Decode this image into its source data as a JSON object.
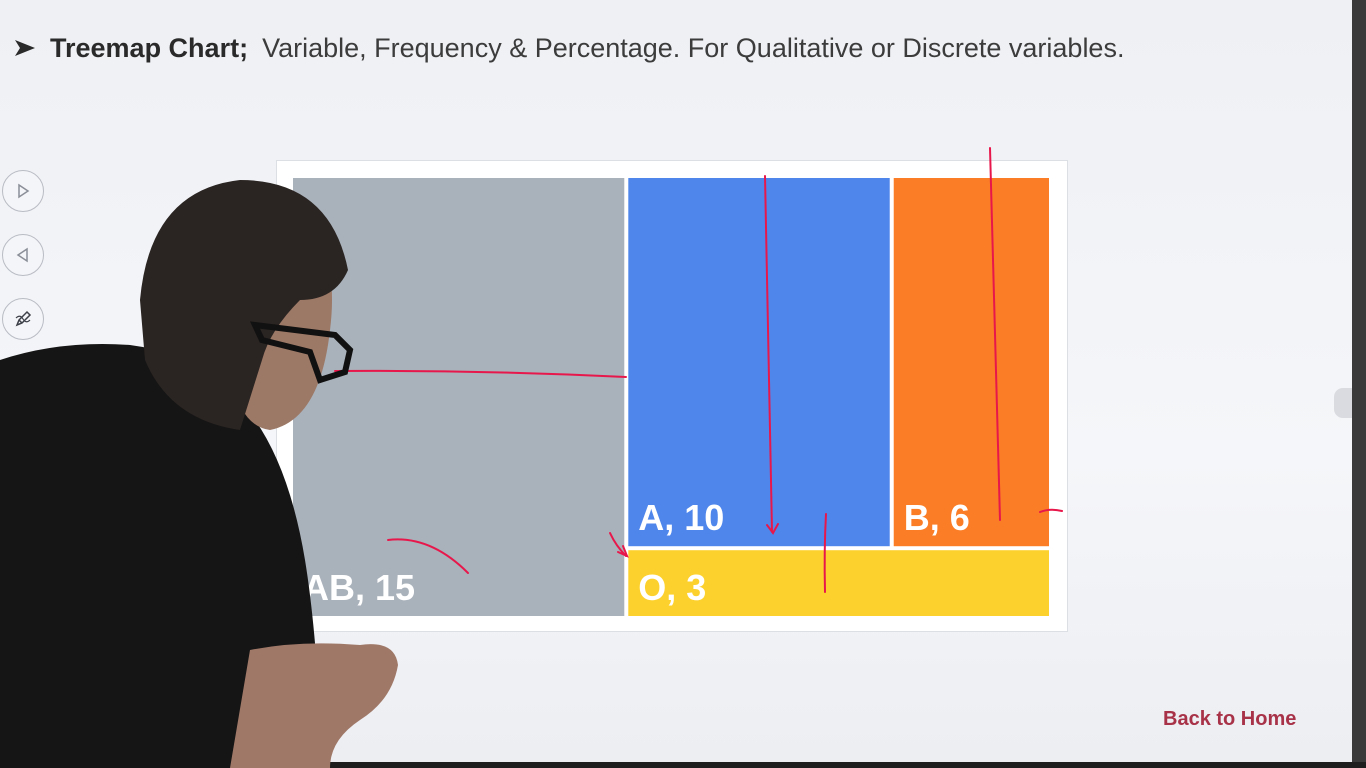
{
  "slide": {
    "title_bold": "Treemap Chart;",
    "title_rest": "Variable, Frequency & Percentage. For Qualitative or Discrete variables.",
    "back_link": "Back to Home"
  },
  "side_tools": [
    {
      "name": "next-slide-button",
      "icon": "play-right-icon"
    },
    {
      "name": "previous-slide-button",
      "icon": "play-left-icon"
    },
    {
      "name": "pen-tool-button",
      "icon": "pen-icon"
    }
  ],
  "chart_data": {
    "type": "treemap",
    "title": "",
    "values_shown_as_labels": true,
    "items": [
      {
        "name": "AB",
        "value": 15,
        "label": "AB, 15",
        "color": "#a9b1ba"
      },
      {
        "name": "A",
        "value": 10,
        "label": "A, 10",
        "color": "#4f86ec"
      },
      {
        "name": "B",
        "value": 6,
        "label": "B, 6",
        "color": "#fb7d25"
      },
      {
        "name": "O",
        "value": 3,
        "label": "O, 3",
        "color": "#fdd12d"
      }
    ]
  },
  "annotation_color": "#e8174b",
  "background_color": "#eef0f4"
}
